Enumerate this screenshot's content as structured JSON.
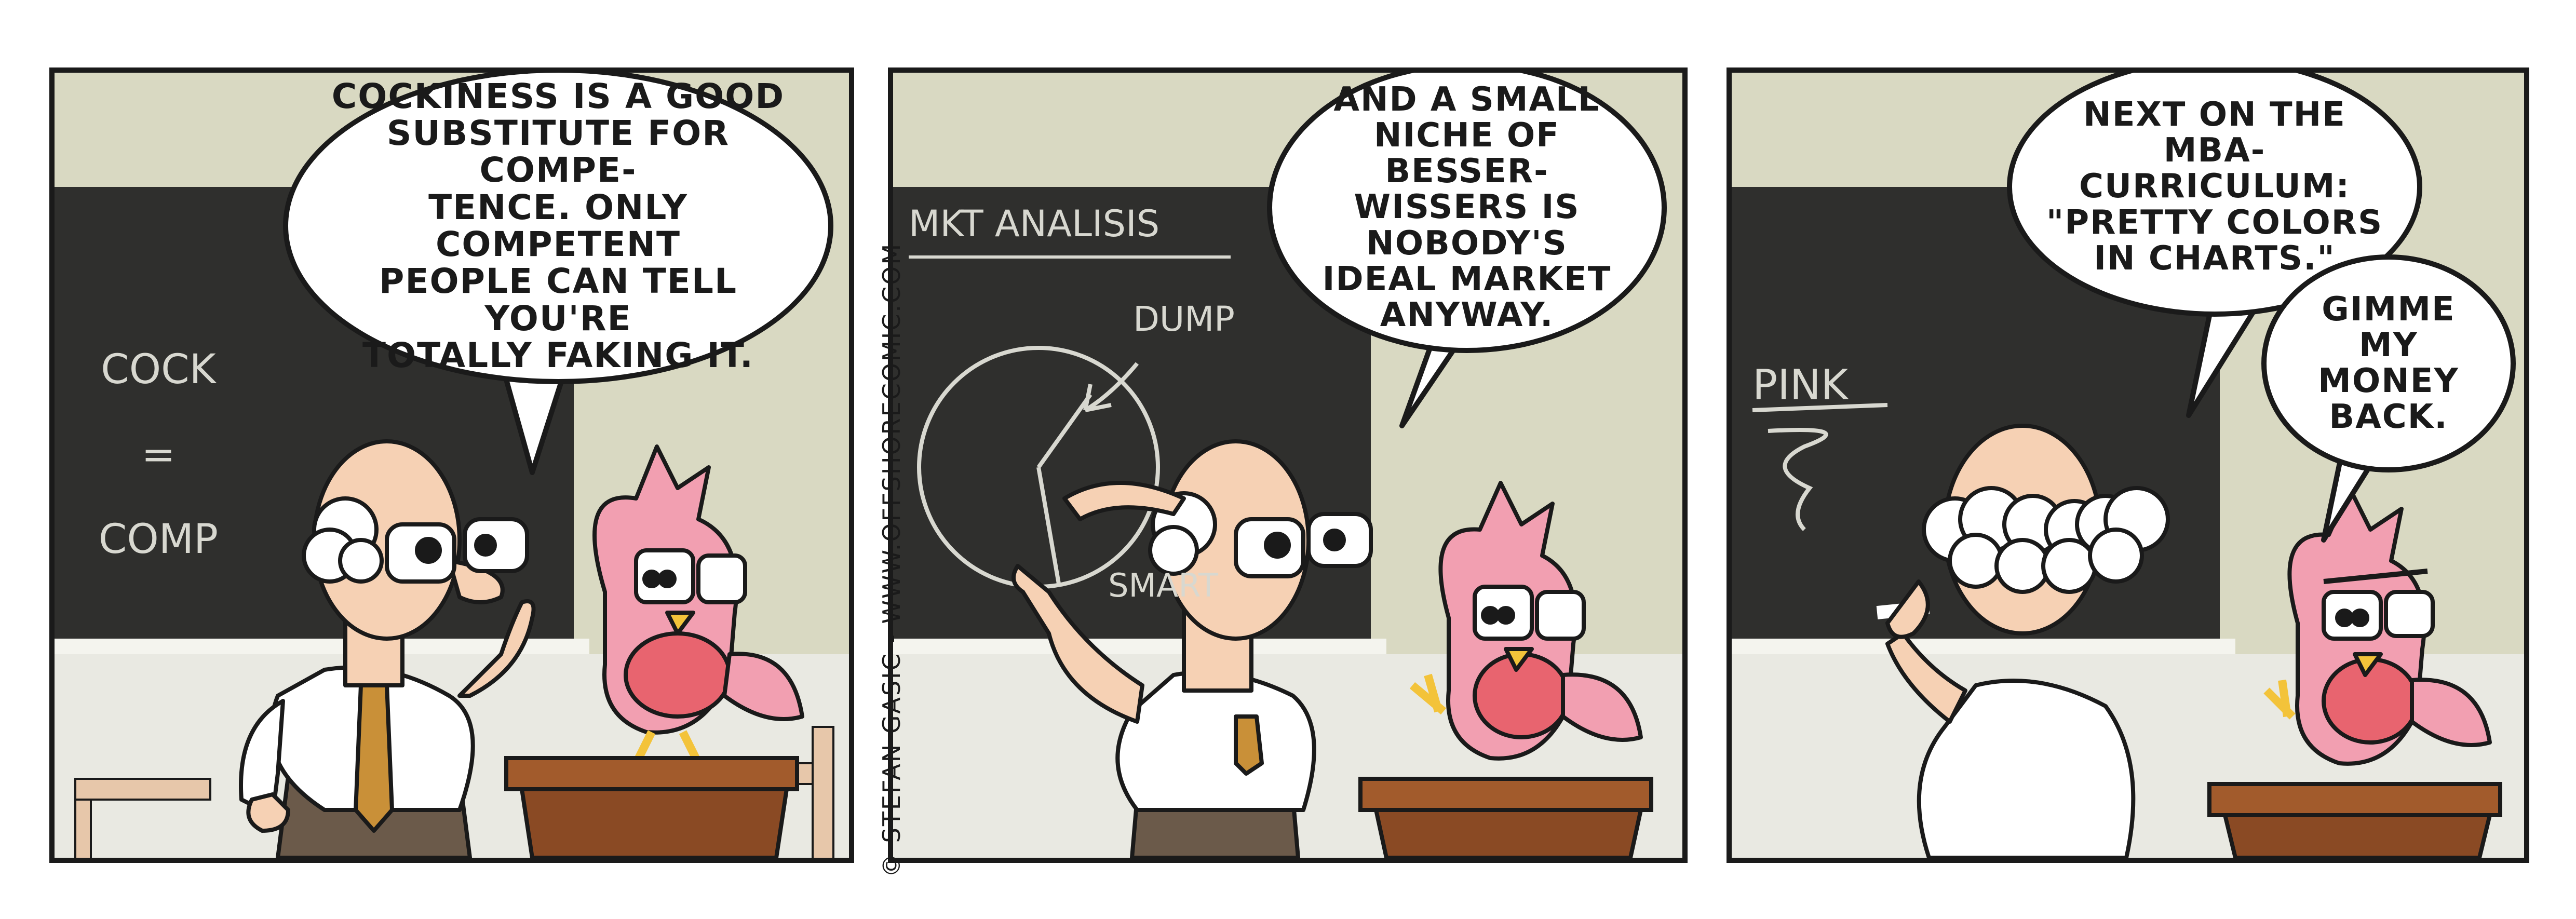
{
  "comic": {
    "credit": "© STEFAN GASIC - WWW.OFFSHORECOMIC.COM",
    "colors": {
      "wall": "#d9d9c2",
      "chalkboard": "#2f2f2d",
      "bird": "#f29fb1",
      "skin": "#f6d1b4",
      "podium": "#8a4a24",
      "tie": "#c99038"
    }
  },
  "panels": [
    {
      "speech": "COCKINESS IS A GOOD\nSUBSTITUTE FOR COMPE-\nTENCE. ONLY COMPETENT\nPEOPLE CAN TELL YOU'RE\nTOTALLY FAKING IT.",
      "board": {
        "line1": "COCK",
        "line2": "=",
        "line3": "COMP"
      }
    },
    {
      "speech": "AND A SMALL\nNICHE OF BESSER-\nWISSERS IS NOBODY'S\nIDEAL MARKET\nANYWAY.",
      "board": {
        "title": "MKT ANALISIS",
        "label_dump": "DUMP",
        "label_smart": "SMART"
      }
    },
    {
      "speech": "NEXT ON THE\nMBA-CURRICULUM:\n\"PRETTY COLORS\nIN CHARTS.\"",
      "speech_bird": "GIMME\nMY MONEY\nBACK.",
      "board": {
        "word": "PINK"
      }
    }
  ]
}
